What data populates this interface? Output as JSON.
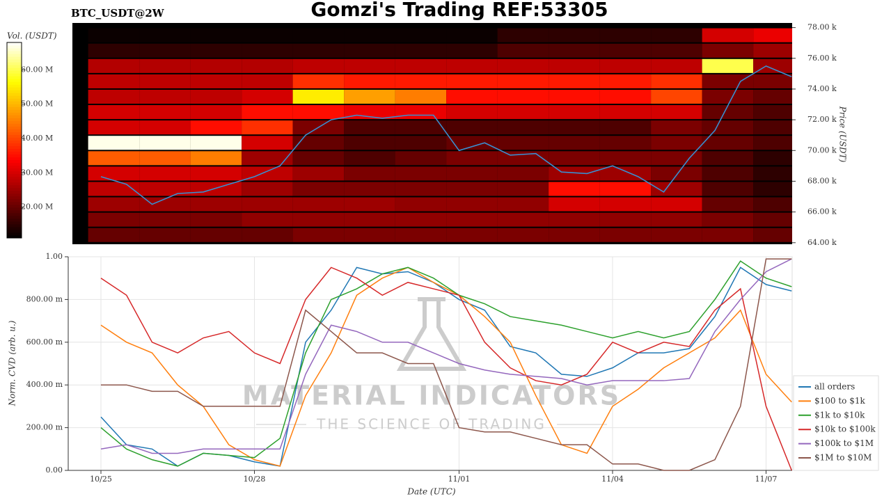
{
  "title": "Gomzi's Trading REF:53305",
  "chart_data": [
    {
      "type": "heatmap",
      "title": "BTC_USDT@2W",
      "y_label": "Price (USDT)",
      "colorbar_label": "Vol. (USDT)",
      "ylim": [
        63900,
        78300
      ],
      "yticks": [
        {
          "value": 64000,
          "label": "64.00 k"
        },
        {
          "value": 66000,
          "label": "66.00 k"
        },
        {
          "value": 68000,
          "label": "68.00 k"
        },
        {
          "value": 70000,
          "label": "70.00 k"
        },
        {
          "value": 72000,
          "label": "72.00 k"
        },
        {
          "value": 74000,
          "label": "74.00 k"
        },
        {
          "value": 76000,
          "label": "76.00 k"
        },
        {
          "value": 78000,
          "label": "78.00 k"
        }
      ],
      "zlim": [
        11000000,
        68000000
      ],
      "zticks": [
        {
          "value": 20000000,
          "label": "20.00 M"
        },
        {
          "value": 30000000,
          "label": "30.00 M"
        },
        {
          "value": 40000000,
          "label": "40.00 M"
        },
        {
          "value": 50000000,
          "label": "50.00 M"
        },
        {
          "value": 60000000,
          "label": "60.00 M"
        }
      ],
      "ybins": [
        64000,
        65000,
        66000,
        67000,
        68000,
        69000,
        70000,
        71000,
        72000,
        73000,
        74000,
        75000,
        76000,
        77000,
        78000
      ],
      "z": [
        [
          20000000,
          20000000,
          20000000,
          20000000,
          22000000,
          22000000,
          22000000,
          22000000,
          22000000,
          22000000,
          22000000,
          22000000,
          22000000,
          20000000
        ],
        [
          22000000,
          22000000,
          22000000,
          24000000,
          24000000,
          24000000,
          24000000,
          24000000,
          24000000,
          24000000,
          24000000,
          24000000,
          22000000,
          20000000
        ],
        [
          25000000,
          25000000,
          25000000,
          25000000,
          25000000,
          25000000,
          24000000,
          24000000,
          24000000,
          30000000,
          30000000,
          30000000,
          20000000,
          18000000
        ],
        [
          28000000,
          28000000,
          28000000,
          25000000,
          22000000,
          22000000,
          22000000,
          22000000,
          22000000,
          35000000,
          35000000,
          25000000,
          18000000,
          15000000
        ],
        [
          30000000,
          30000000,
          30000000,
          28000000,
          25000000,
          22000000,
          22000000,
          22000000,
          22000000,
          25000000,
          25000000,
          22000000,
          18000000,
          15000000
        ],
        [
          42000000,
          42000000,
          45000000,
          25000000,
          20000000,
          18000000,
          20000000,
          22000000,
          22000000,
          22000000,
          22000000,
          22000000,
          18000000,
          15000000
        ],
        [
          67000000,
          67000000,
          67000000,
          30000000,
          20000000,
          18000000,
          18000000,
          20000000,
          20000000,
          20000000,
          20000000,
          22000000,
          20000000,
          18000000
        ],
        [
          30000000,
          30000000,
          35000000,
          38000000,
          22000000,
          18000000,
          18000000,
          18000000,
          18000000,
          18000000,
          18000000,
          22000000,
          20000000,
          18000000
        ],
        [
          30000000,
          30000000,
          30000000,
          35000000,
          35000000,
          32000000,
          32000000,
          30000000,
          30000000,
          30000000,
          30000000,
          30000000,
          20000000,
          18000000
        ],
        [
          28000000,
          28000000,
          28000000,
          30000000,
          55000000,
          48000000,
          45000000,
          35000000,
          35000000,
          35000000,
          35000000,
          40000000,
          22000000,
          20000000
        ],
        [
          28000000,
          28000000,
          28000000,
          28000000,
          38000000,
          36000000,
          36000000,
          36000000,
          36000000,
          36000000,
          36000000,
          38000000,
          22000000,
          22000000
        ],
        [
          27000000,
          27000000,
          27000000,
          27000000,
          28000000,
          28000000,
          28000000,
          28000000,
          28000000,
          28000000,
          28000000,
          28000000,
          60000000,
          25000000
        ],
        [
          15000000,
          15000000,
          15000000,
          15000000,
          15000000,
          15000000,
          15000000,
          15000000,
          18000000,
          18000000,
          18000000,
          18000000,
          22000000,
          25000000
        ],
        [
          12000000,
          12000000,
          12000000,
          12000000,
          12000000,
          12000000,
          12000000,
          12000000,
          15000000,
          15000000,
          15000000,
          15000000,
          30000000,
          32000000
        ]
      ],
      "line_color": "#3a8fd0",
      "values": [
        68300,
        67800,
        66500,
        67200,
        67300,
        67800,
        68300,
        69000,
        71000,
        72000,
        72300,
        72100,
        72300,
        72300,
        70000,
        70500,
        69700,
        69800,
        68600,
        68500,
        69000,
        68300,
        67300,
        69500,
        71300,
        74500,
        75500,
        74800
      ]
    },
    {
      "type": "line",
      "x_label": "Date (UTC)",
      "y_label": "Norm. CVD (arb. u.)",
      "categories": [
        "10/25",
        null,
        null,
        null,
        null,
        null,
        "10/28",
        null,
        null,
        null,
        null,
        null,
        null,
        null,
        "11/01",
        null,
        null,
        null,
        null,
        null,
        "11/04",
        null,
        null,
        null,
        null,
        null,
        "11/07",
        null
      ],
      "ylim": [
        0,
        1
      ],
      "yticks": [
        {
          "value": 0,
          "label": "0.00"
        },
        {
          "value": 0.2,
          "label": "200.00 m"
        },
        {
          "value": 0.4,
          "label": "400.00 m"
        },
        {
          "value": 0.6,
          "label": "600.00 m"
        },
        {
          "value": 0.8,
          "label": "800.00 m"
        },
        {
          "value": 1,
          "label": "1.00"
        }
      ],
      "grid": true,
      "legend": "lower right",
      "watermark": {
        "title": "MATERIAL INDICATORS",
        "subtitle": "THE SCIENCE OF TRADING"
      },
      "series": [
        {
          "name": "all orders",
          "color": "#1f77b4",
          "values": [
            0.25,
            0.12,
            0.1,
            0.02,
            0.08,
            0.07,
            0.04,
            0.02,
            0.6,
            0.75,
            0.95,
            0.92,
            0.93,
            0.88,
            0.8,
            0.75,
            0.58,
            0.55,
            0.45,
            0.44,
            0.48,
            0.55,
            0.55,
            0.57,
            0.72,
            0.95,
            0.87,
            0.84
          ]
        },
        {
          "name": "$100 to $1k",
          "color": "#ff7f0e",
          "values": [
            0.68,
            0.6,
            0.55,
            0.4,
            0.3,
            0.12,
            0.05,
            0.02,
            0.35,
            0.55,
            0.82,
            0.9,
            0.95,
            0.88,
            0.82,
            0.72,
            0.6,
            0.35,
            0.12,
            0.08,
            0.3,
            0.38,
            0.48,
            0.55,
            0.62,
            0.75,
            0.45,
            0.32
          ]
        },
        {
          "name": "$1k to $10k",
          "color": "#2ca02c",
          "values": [
            0.2,
            0.1,
            0.05,
            0.02,
            0.08,
            0.07,
            0.06,
            0.15,
            0.55,
            0.8,
            0.85,
            0.92,
            0.95,
            0.9,
            0.82,
            0.78,
            0.72,
            0.7,
            0.68,
            0.65,
            0.62,
            0.65,
            0.62,
            0.65,
            0.8,
            0.98,
            0.9,
            0.86
          ]
        },
        {
          "name": "$10k to $100k",
          "color": "#d62728",
          "values": [
            0.9,
            0.82,
            0.6,
            0.55,
            0.62,
            0.65,
            0.55,
            0.5,
            0.8,
            0.95,
            0.9,
            0.82,
            0.88,
            0.85,
            0.82,
            0.6,
            0.48,
            0.42,
            0.4,
            0.45,
            0.6,
            0.55,
            0.6,
            0.58,
            0.75,
            0.85,
            0.3,
            0.0
          ]
        },
        {
          "name": "$100k to $1M",
          "color": "#9467bd",
          "values": [
            0.1,
            0.12,
            0.08,
            0.08,
            0.1,
            0.1,
            0.1,
            0.1,
            0.45,
            0.68,
            0.65,
            0.6,
            0.6,
            0.55,
            0.5,
            0.47,
            0.45,
            0.44,
            0.43,
            0.4,
            0.42,
            0.42,
            0.42,
            0.43,
            0.65,
            0.8,
            0.93,
            0.99
          ]
        },
        {
          "name": "$1M to $10M",
          "color": "#8c564b",
          "values": [
            0.4,
            0.4,
            0.37,
            0.37,
            0.3,
            0.3,
            0.3,
            0.3,
            0.75,
            0.65,
            0.55,
            0.55,
            0.5,
            0.5,
            0.2,
            0.18,
            0.18,
            0.15,
            0.12,
            0.12,
            0.03,
            0.03,
            0.0,
            0.0,
            0.05,
            0.3,
            0.99,
            0.99
          ]
        }
      ]
    }
  ]
}
